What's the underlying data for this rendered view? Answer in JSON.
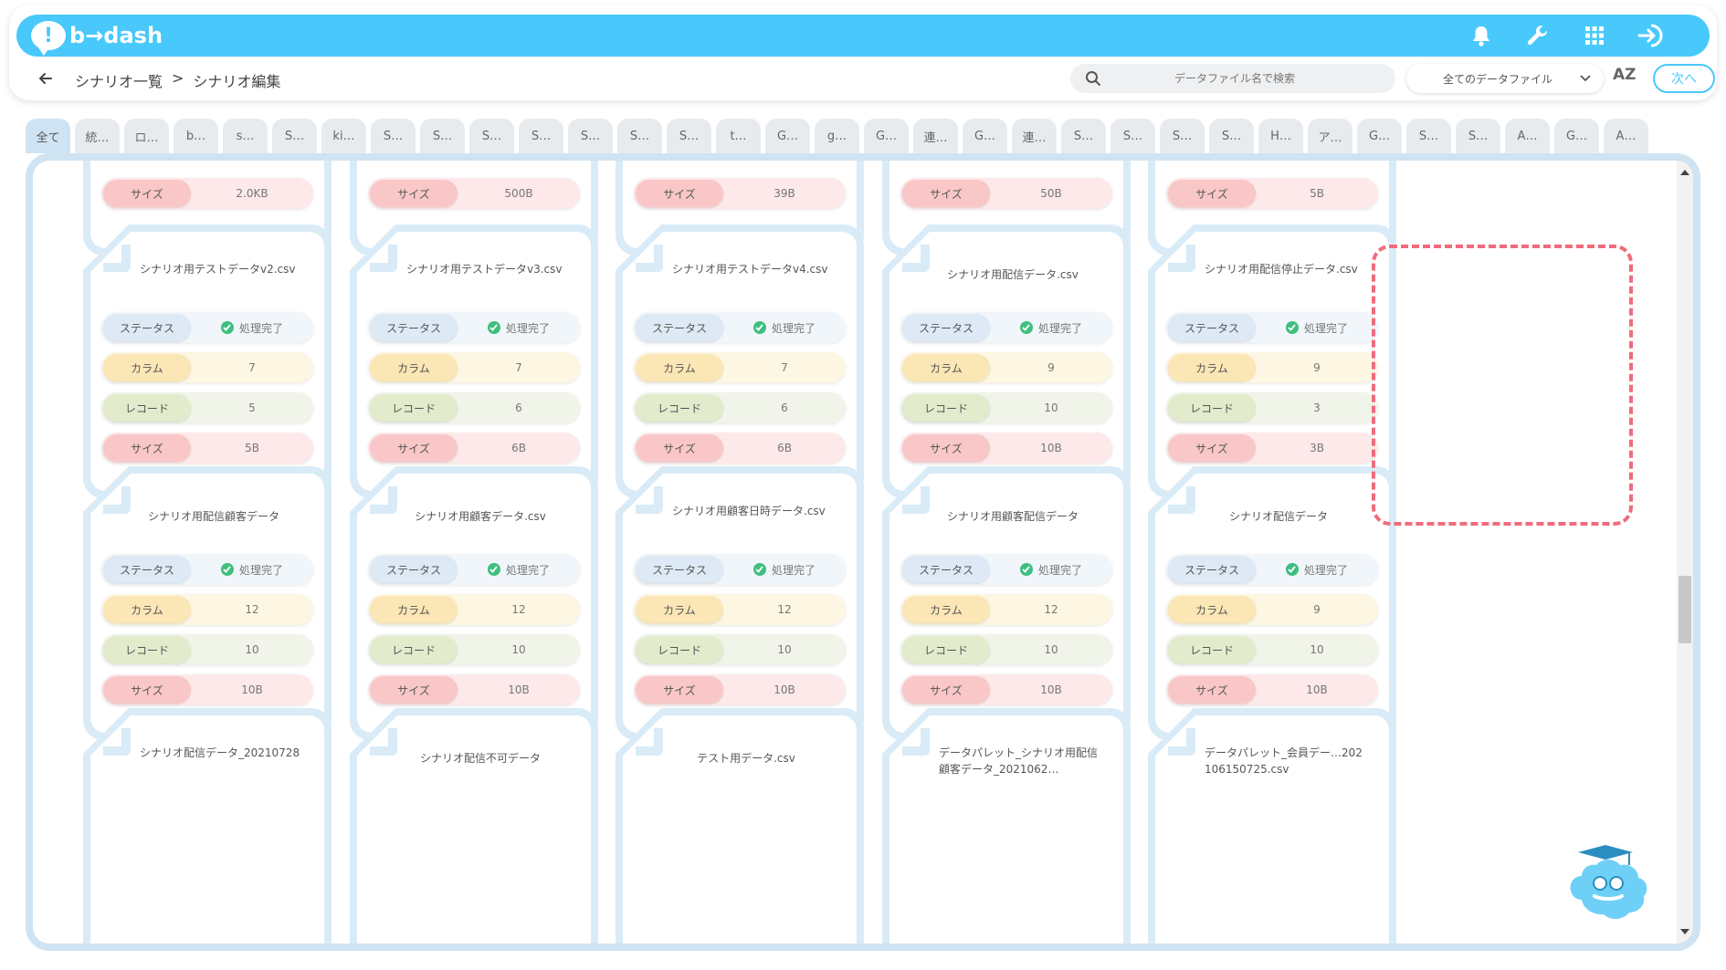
{
  "app": {
    "logo_text": "b→dash",
    "logo_mark": "!"
  },
  "header": {
    "icons": [
      "bell-icon",
      "wrench-icon",
      "grid-icon",
      "logout-icon"
    ]
  },
  "breadcrumb": {
    "parent": "シナリオ一覧",
    "separator": ">",
    "current": "シナリオ編集"
  },
  "search": {
    "placeholder": "データファイル名で検索",
    "value": ""
  },
  "filter": {
    "selected": "全てのデータファイル"
  },
  "sort_label": "AZ",
  "next_button": "次へ",
  "tabs": [
    "全て",
    "統…",
    "ロ…",
    "b…",
    "s…",
    "S…",
    "ki…",
    "S…",
    "S…",
    "S…",
    "S…",
    "S…",
    "S…",
    "S…",
    "t…",
    "G…",
    "g…",
    "G…",
    "連…",
    "G…",
    "連…",
    "S…",
    "S…",
    "S…",
    "S…",
    "H…",
    "ア…",
    "G…",
    "S…",
    "S…",
    "A…",
    "G…",
    "A…"
  ],
  "row_labels": {
    "status": "ステータス",
    "column": "カラム",
    "record": "レコード",
    "size": "サイズ"
  },
  "cards_row0_sizes": [
    "2.0KB",
    "500B",
    "39B",
    "50B",
    "5B"
  ],
  "cards": [
    {
      "title": "シナリオ用テストデータv2.csv",
      "status": "処理完了",
      "columns": "7",
      "records": "5",
      "size": "5B"
    },
    {
      "title": "シナリオ用テストデータv3.csv",
      "status": "処理完了",
      "columns": "7",
      "records": "6",
      "size": "6B"
    },
    {
      "title": "シナリオ用テストデータv4.csv",
      "status": "処理完了",
      "columns": "7",
      "records": "6",
      "size": "6B"
    },
    {
      "title": "シナリオ用配信データ.csv",
      "status": "処理完了",
      "columns": "9",
      "records": "10",
      "size": "10B"
    },
    {
      "title": "シナリオ用配信停止データ.csv",
      "status": "処理完了",
      "columns": "9",
      "records": "3",
      "size": "3B"
    },
    {
      "title": "シナリオ用配信顧客データ",
      "status": "処理完了",
      "columns": "12",
      "records": "10",
      "size": "10B"
    },
    {
      "title": "シナリオ用顧客データ.csv",
      "status": "処理完了",
      "columns": "12",
      "records": "10",
      "size": "10B"
    },
    {
      "title": "シナリオ用顧客日時データ.csv",
      "status": "処理完了",
      "columns": "12",
      "records": "10",
      "size": "10B"
    },
    {
      "title": "シナリオ用顧客配信データ",
      "status": "処理完了",
      "columns": "12",
      "records": "10",
      "size": "10B"
    },
    {
      "title": "シナリオ配信データ",
      "status": "処理完了",
      "columns": "9",
      "records": "10",
      "size": "10B"
    }
  ],
  "cards_row3": [
    "シナリオ配信データ_20210728",
    "シナリオ配信不可データ",
    "テスト用データ.csv",
    "データパレット_シナリオ用配信顧客データ_2021062…",
    "データパレット_会員デー…202106150725.csv"
  ],
  "colors": {
    "accent": "#49c9fb",
    "selected": "#f06b7c",
    "check": "#3fbf7f"
  }
}
